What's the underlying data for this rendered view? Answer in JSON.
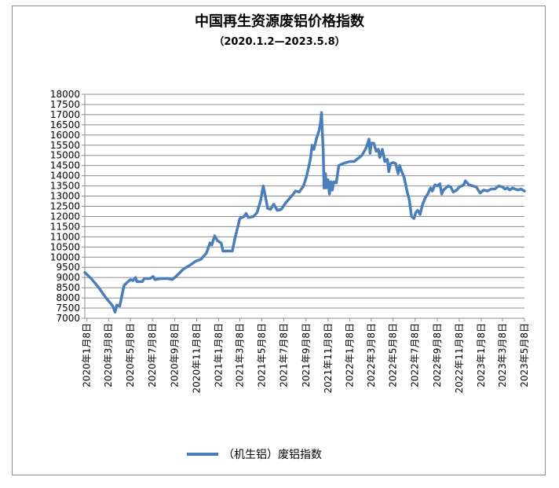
{
  "chart_data": {
    "type": "line",
    "title": "中国再生资源废铝价格指数",
    "subtitle": "（2020.1.2—2023.5.8）",
    "xlabel": "",
    "ylabel": "",
    "ylim": [
      7000,
      18000
    ],
    "yticks": [
      7000,
      7500,
      8000,
      8500,
      9000,
      9500,
      10000,
      10500,
      11000,
      11500,
      12000,
      12500,
      13000,
      13500,
      14000,
      14500,
      15000,
      15500,
      16000,
      16500,
      17000,
      17500,
      18000
    ],
    "x_start": "2020-01-02",
    "x_end": "2023-05-08",
    "x_tick_dates": [
      "2020-01-08",
      "2020-03-08",
      "2020-05-08",
      "2020-07-08",
      "2020-09-08",
      "2020-11-08",
      "2021-01-08",
      "2021-03-08",
      "2021-05-08",
      "2021-07-08",
      "2021-09-08",
      "2021-11-08",
      "2022-01-08",
      "2022-03-08",
      "2022-05-08",
      "2022-07-08",
      "2022-09-08",
      "2022-11-08",
      "2023-01-08",
      "2023-03-08",
      "2023-05-08"
    ],
    "x_tick_labels": [
      "2020年1月8日",
      "2020年3月8日",
      "2020年5月8日",
      "2020年7月8日",
      "2020年9月8日",
      "2020年11月8日",
      "2021年1月8日",
      "2021年3月8日",
      "2021年5月8日",
      "2021年7月8日",
      "2021年9月8日",
      "2021年11月8日",
      "2022年1月8日",
      "2022年3月8日",
      "2022年5月8日",
      "2022年7月8日",
      "2022年9月8日",
      "2022年11月8日",
      "2023年1月8日",
      "2023年3月8日",
      "2023年5月8日"
    ],
    "grid": true,
    "legend_position": "bottom",
    "series": [
      {
        "name": "（机生铝）废铝指数",
        "color": "#4a7ebb",
        "points": [
          [
            "2020-01-02",
            9250
          ],
          [
            "2020-01-20",
            8950
          ],
          [
            "2020-02-10",
            8500
          ],
          [
            "2020-03-01",
            8000
          ],
          [
            "2020-03-20",
            7600
          ],
          [
            "2020-03-26",
            7300
          ],
          [
            "2020-03-31",
            7650
          ],
          [
            "2020-04-08",
            7600
          ],
          [
            "2020-04-14",
            8100
          ],
          [
            "2020-04-20",
            8600
          ],
          [
            "2020-04-28",
            8750
          ],
          [
            "2020-05-08",
            8900
          ],
          [
            "2020-05-15",
            8850
          ],
          [
            "2020-05-22",
            9000
          ],
          [
            "2020-05-26",
            8800
          ],
          [
            "2020-06-10",
            8800
          ],
          [
            "2020-06-15",
            8950
          ],
          [
            "2020-07-01",
            8950
          ],
          [
            "2020-07-10",
            9050
          ],
          [
            "2020-07-15",
            8900
          ],
          [
            "2020-08-01",
            8950
          ],
          [
            "2020-08-20",
            8950
          ],
          [
            "2020-09-01",
            8900
          ],
          [
            "2020-09-08",
            9000
          ],
          [
            "2020-09-20",
            9200
          ],
          [
            "2020-10-01",
            9400
          ],
          [
            "2020-10-20",
            9600
          ],
          [
            "2020-11-05",
            9800
          ],
          [
            "2020-11-20",
            9900
          ],
          [
            "2020-12-05",
            10200
          ],
          [
            "2020-12-15",
            10700
          ],
          [
            "2020-12-20",
            10600
          ],
          [
            "2020-12-28",
            11050
          ],
          [
            "2021-01-05",
            10800
          ],
          [
            "2021-01-15",
            10700
          ],
          [
            "2021-01-20",
            10300
          ],
          [
            "2021-02-15",
            10300
          ],
          [
            "2021-02-22",
            10900
          ],
          [
            "2021-03-01",
            11400
          ],
          [
            "2021-03-08",
            11900
          ],
          [
            "2021-03-20",
            12000
          ],
          [
            "2021-03-25",
            12150
          ],
          [
            "2021-04-01",
            11950
          ],
          [
            "2021-04-15",
            12000
          ],
          [
            "2021-04-25",
            12200
          ],
          [
            "2021-05-05",
            12800
          ],
          [
            "2021-05-12",
            13500
          ],
          [
            "2021-05-18",
            13000
          ],
          [
            "2021-05-24",
            12400
          ],
          [
            "2021-06-01",
            12350
          ],
          [
            "2021-06-10",
            12600
          ],
          [
            "2021-06-20",
            12300
          ],
          [
            "2021-07-01",
            12350
          ],
          [
            "2021-07-15",
            12700
          ],
          [
            "2021-08-01",
            13050
          ],
          [
            "2021-08-10",
            13250
          ],
          [
            "2021-08-20",
            13200
          ],
          [
            "2021-09-01",
            13500
          ],
          [
            "2021-09-10",
            14000
          ],
          [
            "2021-09-20",
            14800
          ],
          [
            "2021-09-25",
            15500
          ],
          [
            "2021-09-30",
            15300
          ],
          [
            "2021-10-08",
            15900
          ],
          [
            "2021-10-14",
            16200
          ],
          [
            "2021-10-18",
            16600
          ],
          [
            "2021-10-21",
            17100
          ],
          [
            "2021-10-23",
            16200
          ],
          [
            "2021-10-26",
            15100
          ],
          [
            "2021-10-28",
            13400
          ],
          [
            "2021-11-01",
            14100
          ],
          [
            "2021-11-03",
            13400
          ],
          [
            "2021-11-08",
            13800
          ],
          [
            "2021-11-12",
            13100
          ],
          [
            "2021-11-16",
            13700
          ],
          [
            "2021-11-20",
            13300
          ],
          [
            "2021-11-24",
            13700
          ],
          [
            "2021-12-01",
            13650
          ],
          [
            "2021-12-08",
            14500
          ],
          [
            "2021-12-20",
            14600
          ],
          [
            "2022-01-08",
            14700
          ],
          [
            "2022-01-20",
            14700
          ],
          [
            "2022-02-10",
            15000
          ],
          [
            "2022-02-20",
            15300
          ],
          [
            "2022-02-25",
            15500
          ],
          [
            "2022-03-02",
            15800
          ],
          [
            "2022-03-05",
            15100
          ],
          [
            "2022-03-08",
            15600
          ],
          [
            "2022-03-15",
            15600
          ],
          [
            "2022-03-22",
            15200
          ],
          [
            "2022-03-28",
            15300
          ],
          [
            "2022-04-01",
            14900
          ],
          [
            "2022-04-08",
            15300
          ],
          [
            "2022-04-15",
            14700
          ],
          [
            "2022-04-22",
            14800
          ],
          [
            "2022-04-26",
            14200
          ],
          [
            "2022-05-01",
            14600
          ],
          [
            "2022-05-08",
            14650
          ],
          [
            "2022-05-15",
            14600
          ],
          [
            "2022-05-22",
            14100
          ],
          [
            "2022-05-26",
            14500
          ],
          [
            "2022-06-01",
            14200
          ],
          [
            "2022-06-08",
            13900
          ],
          [
            "2022-06-15",
            13300
          ],
          [
            "2022-06-22",
            12800
          ],
          [
            "2022-06-28",
            12000
          ],
          [
            "2022-07-05",
            11900
          ],
          [
            "2022-07-10",
            12200
          ],
          [
            "2022-07-15",
            12300
          ],
          [
            "2022-07-22",
            12100
          ],
          [
            "2022-07-28",
            12550
          ],
          [
            "2022-08-05",
            12900
          ],
          [
            "2022-08-12",
            13100
          ],
          [
            "2022-08-20",
            13400
          ],
          [
            "2022-08-25",
            13250
          ],
          [
            "2022-09-01",
            13550
          ],
          [
            "2022-09-08",
            13500
          ],
          [
            "2022-09-15",
            13600
          ],
          [
            "2022-09-20",
            13100
          ],
          [
            "2022-09-25",
            13300
          ],
          [
            "2022-10-08",
            13500
          ],
          [
            "2022-10-15",
            13450
          ],
          [
            "2022-10-22",
            13200
          ],
          [
            "2022-11-01",
            13300
          ],
          [
            "2022-11-08",
            13450
          ],
          [
            "2022-11-20",
            13550
          ],
          [
            "2022-11-25",
            13750
          ],
          [
            "2022-12-05",
            13550
          ],
          [
            "2022-12-15",
            13500
          ],
          [
            "2022-12-25",
            13450
          ],
          [
            "2023-01-05",
            13150
          ],
          [
            "2023-01-15",
            13300
          ],
          [
            "2023-01-25",
            13250
          ],
          [
            "2023-02-05",
            13350
          ],
          [
            "2023-02-15",
            13350
          ],
          [
            "2023-02-25",
            13500
          ],
          [
            "2023-03-08",
            13450
          ],
          [
            "2023-03-15",
            13350
          ],
          [
            "2023-03-22",
            13400
          ],
          [
            "2023-03-28",
            13300
          ],
          [
            "2023-04-05",
            13400
          ],
          [
            "2023-04-12",
            13350
          ],
          [
            "2023-04-20",
            13300
          ],
          [
            "2023-04-28",
            13350
          ],
          [
            "2023-05-08",
            13250
          ]
        ]
      }
    ]
  }
}
